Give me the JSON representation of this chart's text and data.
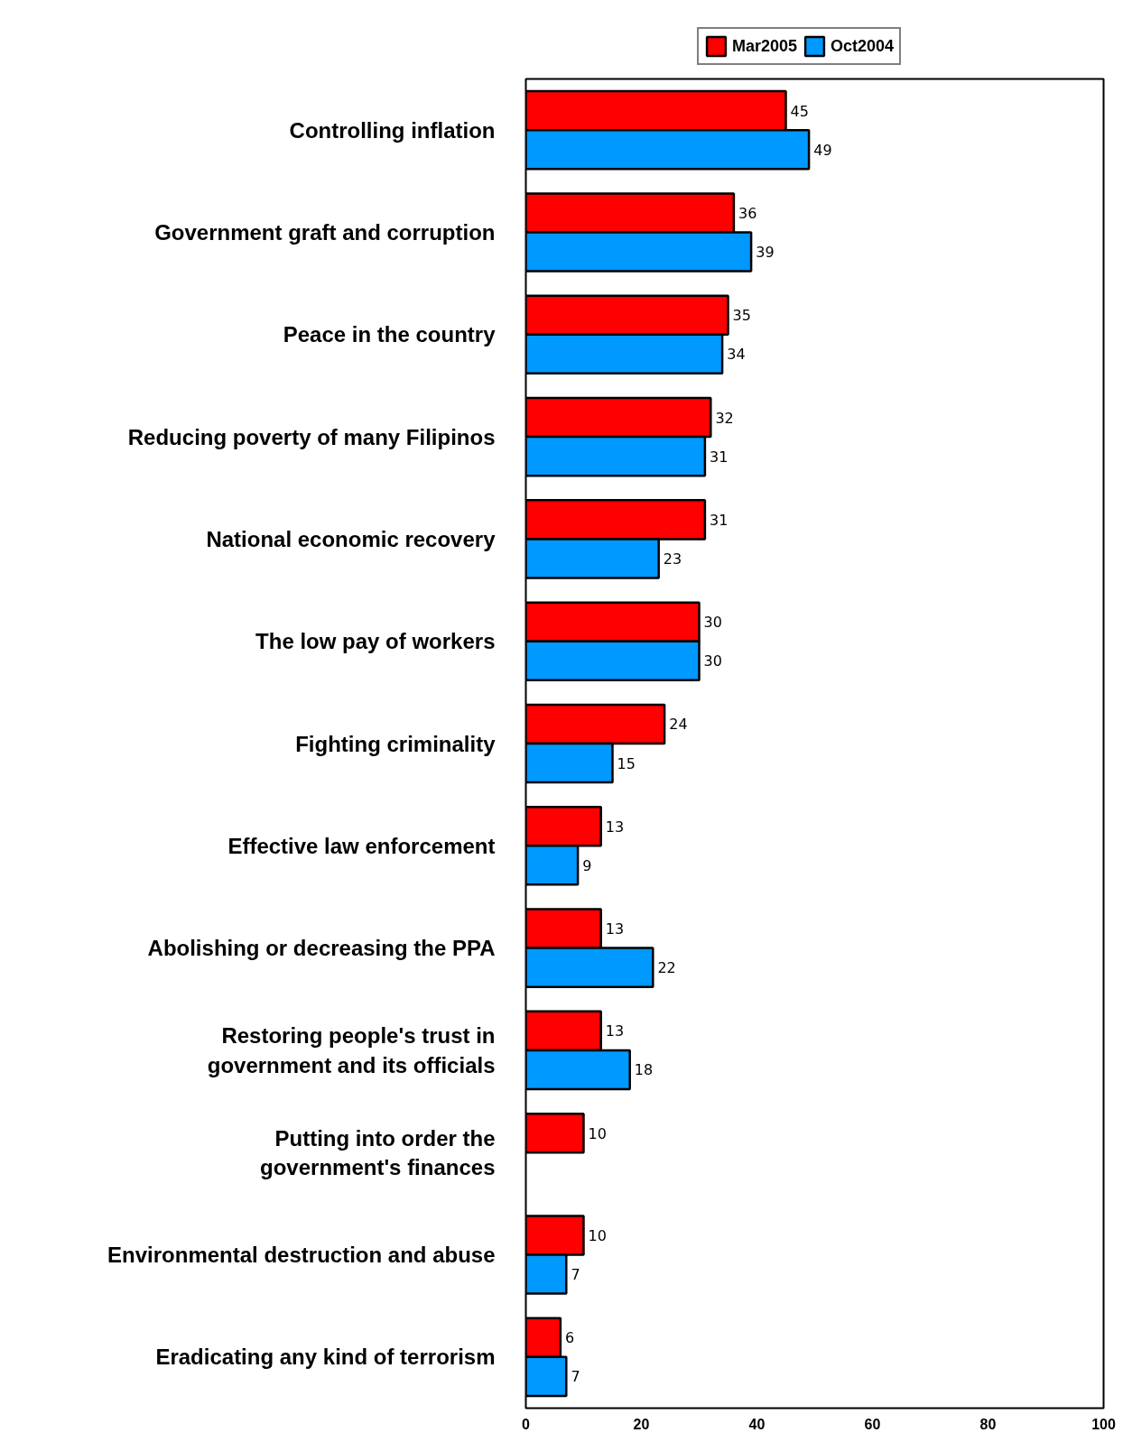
{
  "chart_data": {
    "type": "bar",
    "orientation": "horizontal",
    "categories": [
      "Controlling inflation",
      "Government graft and corruption",
      "Peace in the country",
      "Reducing poverty of many Filipinos",
      "National economic recovery",
      "The low pay of workers",
      "Fighting criminality",
      "Effective law enforcement",
      "Abolishing or decreasing the PPA",
      "Restoring people's trust in\ngovernment and its officials",
      "Putting into order the\ngovernment's finances",
      "Environmental destruction and abuse",
      "Eradicating any kind of terrorism"
    ],
    "series": [
      {
        "name": "Mar2005",
        "color": "#ff0000",
        "values": [
          45,
          36,
          35,
          32,
          31,
          30,
          24,
          13,
          13,
          13,
          10,
          10,
          6
        ]
      },
      {
        "name": "Oct2004",
        "color": "#0099ff",
        "values": [
          49,
          39,
          34,
          31,
          23,
          30,
          15,
          9,
          22,
          18,
          null,
          7,
          7
        ]
      }
    ],
    "xlim": [
      0,
      100
    ],
    "xticks": [
      0,
      20,
      40,
      60,
      80,
      100
    ],
    "data_labels": true,
    "legend": "top",
    "grid": false
  }
}
